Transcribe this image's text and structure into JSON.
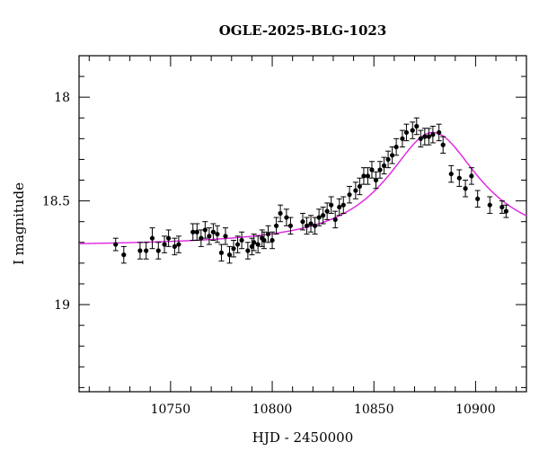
{
  "chart_data": {
    "type": "scatter",
    "title": "OGLE-2025-BLG-1023",
    "xlabel": "HJD - 2450000",
    "ylabel": "I magnitude",
    "xlim": [
      10705,
      10925
    ],
    "ylim": [
      19.42,
      17.8
    ],
    "y_inverted": true,
    "xticks_major": [
      10750,
      10800,
      10850,
      10900
    ],
    "xtick_labels": [
      "10750",
      "10800",
      "10850",
      "10900"
    ],
    "yticks_major": [
      18,
      18.5,
      19
    ],
    "ytick_labels": [
      "18",
      "18.5",
      "19"
    ],
    "grid": false,
    "colors": {
      "points": "#000000",
      "model": "#e020e0"
    },
    "series": [
      {
        "kind": "points",
        "x": [
          10723,
          10727,
          10735,
          10738,
          10741,
          10744,
          10747,
          10749,
          10752,
          10754,
          10761,
          10763,
          10765,
          10767,
          10769,
          10771,
          10773,
          10775,
          10777,
          10779,
          10781,
          10783,
          10785,
          10788,
          10790,
          10791,
          10793,
          10795,
          10796,
          10798,
          10800,
          10802,
          10804,
          10807,
          10809,
          10815,
          10817,
          10819,
          10821,
          10823,
          10825,
          10827,
          10829,
          10831,
          10833,
          10835,
          10838,
          10841,
          10843,
          10845,
          10847,
          10849,
          10851,
          10853,
          10855,
          10857,
          10859,
          10861,
          10864,
          10866,
          10869,
          10871,
          10873,
          10875,
          10877,
          10879,
          10882,
          10884,
          10888,
          10892,
          10895,
          10898,
          10901,
          10907,
          10913,
          10915
        ],
        "y": [
          18.71,
          18.76,
          18.74,
          18.74,
          18.68,
          18.74,
          18.71,
          18.68,
          18.72,
          18.71,
          18.65,
          18.65,
          18.68,
          18.64,
          18.67,
          18.65,
          18.66,
          18.75,
          18.67,
          18.76,
          18.73,
          18.71,
          18.69,
          18.74,
          18.72,
          18.7,
          18.71,
          18.68,
          18.69,
          18.66,
          18.69,
          18.62,
          18.56,
          18.58,
          18.62,
          18.6,
          18.62,
          18.61,
          18.62,
          18.58,
          18.57,
          18.55,
          18.52,
          18.59,
          18.53,
          18.52,
          18.47,
          18.45,
          18.43,
          18.38,
          18.38,
          18.35,
          18.4,
          18.35,
          18.33,
          18.3,
          18.28,
          18.24,
          18.2,
          18.17,
          18.16,
          18.14,
          18.2,
          18.19,
          18.19,
          18.18,
          18.17,
          18.23,
          18.37,
          18.39,
          18.44,
          18.38,
          18.49,
          18.52,
          18.53,
          18.55
        ],
        "err": [
          0.03,
          0.04,
          0.04,
          0.04,
          0.05,
          0.04,
          0.04,
          0.04,
          0.04,
          0.04,
          0.04,
          0.04,
          0.04,
          0.04,
          0.04,
          0.04,
          0.04,
          0.04,
          0.04,
          0.04,
          0.04,
          0.04,
          0.04,
          0.04,
          0.04,
          0.04,
          0.04,
          0.04,
          0.04,
          0.04,
          0.04,
          0.04,
          0.04,
          0.04,
          0.04,
          0.04,
          0.04,
          0.04,
          0.04,
          0.04,
          0.04,
          0.04,
          0.04,
          0.04,
          0.04,
          0.04,
          0.04,
          0.04,
          0.04,
          0.04,
          0.04,
          0.04,
          0.04,
          0.04,
          0.04,
          0.04,
          0.04,
          0.04,
          0.04,
          0.04,
          0.04,
          0.04,
          0.04,
          0.04,
          0.04,
          0.04,
          0.04,
          0.04,
          0.04,
          0.04,
          0.04,
          0.04,
          0.04,
          0.04,
          0.03,
          0.03
        ]
      },
      {
        "kind": "model-curve",
        "model": {
          "baseline": 18.72,
          "peak": 18.17,
          "t0": 10879,
          "tE": 28
        }
      }
    ]
  }
}
